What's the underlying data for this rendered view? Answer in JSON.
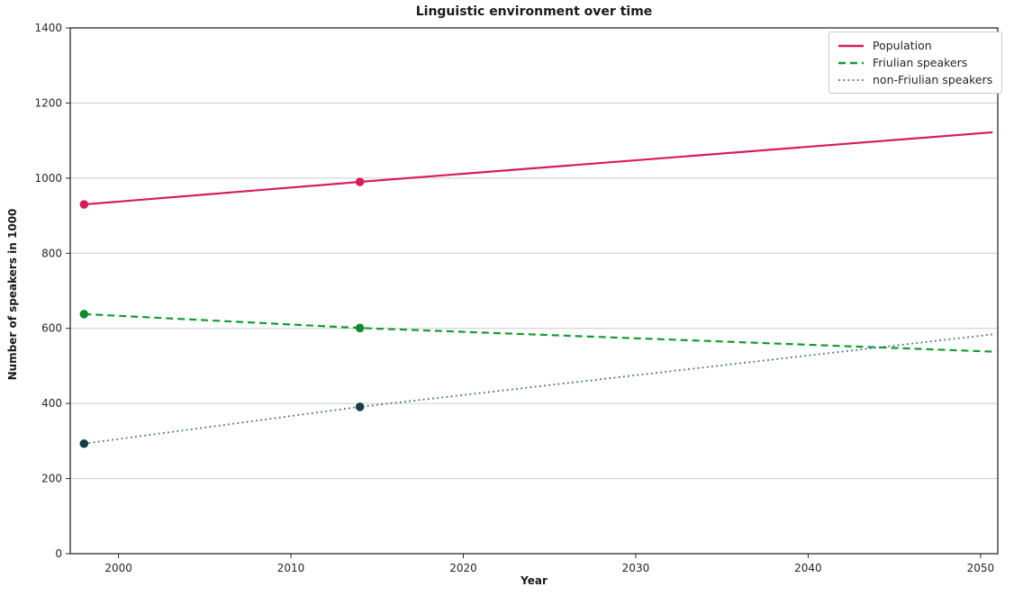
{
  "figure": {
    "title": "Linguistic environment over time",
    "xlabel": "Year",
    "ylabel": "Number of speakers in 1000"
  },
  "chart_data": {
    "type": "line",
    "title": "Linguistic environment over time",
    "xlabel": "Year",
    "ylabel": "Number of speakers in 1000",
    "xlim": [
      1997.2,
      2051
    ],
    "ylim": [
      0,
      1400
    ],
    "x_ticks": [
      2000,
      2010,
      2020,
      2030,
      2040,
      2050
    ],
    "y_ticks": [
      0,
      200,
      400,
      600,
      800,
      1000,
      1200,
      1400
    ],
    "grid": "horizontal",
    "legend_position": "top-right",
    "observed_years": [
      1998,
      2014
    ],
    "series": [
      {
        "name": "Population",
        "style": "solid",
        "color": "#d81b60",
        "marker_color": "#d81b60",
        "x": [
          1998,
          2014,
          2050.7
        ],
        "y": [
          930,
          990,
          1122
        ],
        "marker_x": [
          1998,
          2014
        ],
        "marker_y": [
          930,
          990
        ]
      },
      {
        "name": "Friulian speakers",
        "style": "dashed",
        "color": "#149b32",
        "marker_color": "#118a2c",
        "x": [
          1998,
          2014,
          2050.7
        ],
        "y": [
          638,
          601,
          538
        ],
        "marker_x": [
          1998,
          2014
        ],
        "marker_y": [
          638,
          601
        ]
      },
      {
        "name": "non-Friulian speakers",
        "style": "dotted",
        "color": "#44707e",
        "marker_color": "#123f48",
        "x": [
          1998,
          2014,
          2050.7
        ],
        "y": [
          293,
          391,
          584
        ],
        "marker_x": [
          1998,
          2014
        ],
        "marker_y": [
          293,
          391
        ]
      }
    ]
  }
}
